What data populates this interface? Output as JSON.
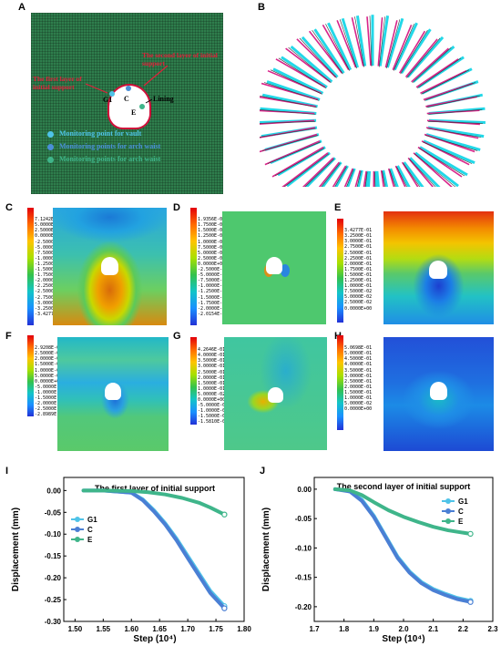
{
  "panel_labels": {
    "A": "A",
    "B": "B",
    "C": "C",
    "D": "D",
    "E": "E",
    "F": "F",
    "G": "G",
    "H": "H",
    "I": "I",
    "J": "J"
  },
  "panel_a": {
    "label_second_layer": "The second layer of initial support",
    "label_first_layer": "The first layer of initial support",
    "label_lining": "Lining",
    "points": [
      "G1",
      "C",
      "E"
    ],
    "legend": [
      {
        "text": "Monitoring point for vault",
        "color": "#4fc3e8"
      },
      {
        "text": "Monitoring points for arch waist",
        "color": "#4a8fd8"
      },
      {
        "text": "Monitoring points for arch waist",
        "color": "#3fb58a"
      }
    ]
  },
  "contours": {
    "C": [
      "7.1242E-02",
      "5.0000E-02",
      "2.5000E-02",
      "0.0000E+00",
      "-2.5000E-02",
      "-5.0000E-02",
      "-7.5000E-02",
      "-1.0000E-01",
      "-1.2500E-01",
      "-1.5000E-01",
      "-1.7500E-01",
      "-2.0000E-01",
      "-2.2500E-01",
      "-2.5000E-01",
      "-2.7500E-01",
      "-3.0000E-01",
      "-3.2500E-01",
      "-3.4277E-01"
    ],
    "D": [
      "1.9356E-01",
      "1.7500E-01",
      "1.5000E-01",
      "1.2500E-01",
      "1.0000E-01",
      "7.5000E-02",
      "5.0000E-02",
      "2.5000E-02",
      "0.0000E+00",
      "-2.5000E-02",
      "-5.0000E-02",
      "-7.5000E-02",
      "-1.0000E-01",
      "-1.2500E-01",
      "-1.5000E-01",
      "-1.7500E-01",
      "-2.0000E-01",
      "-2.0154E-01"
    ],
    "E": [
      "3.4277E-01",
      "3.2500E-01",
      "3.0000E-01",
      "2.7500E-01",
      "2.5000E-01",
      "2.2500E-01",
      "2.0000E-01",
      "1.7500E-01",
      "1.5000E-01",
      "1.2500E-01",
      "1.0000E-01",
      "7.5000E-02",
      "5.0000E-02",
      "2.5000E-02",
      "0.0000E+00"
    ],
    "F": [
      "2.9208E-01",
      "2.5000E-01",
      "2.0000E-01",
      "1.5000E-01",
      "1.0000E-01",
      "5.0000E-02",
      "0.0000E+00",
      "-5.0000E-02",
      "-1.0000E-01",
      "-1.5000E-01",
      "-2.0000E-01",
      "-2.5000E-01",
      "-2.8989E-01"
    ],
    "G": [
      "4.2646E-01",
      "4.0000E-01",
      "3.5000E-01",
      "3.0000E-01",
      "2.5000E-01",
      "2.0000E-01",
      "1.5000E-01",
      "1.0000E-01",
      "5.0000E-02",
      "0.0000E+00",
      "-5.0000E-02",
      "-1.0000E-01",
      "-1.5000E-01",
      "-1.5810E-01"
    ],
    "H": [
      "5.0698E-01",
      "5.0000E-01",
      "4.5000E-01",
      "4.0000E-01",
      "3.5000E-01",
      "3.0000E-01",
      "2.5000E-01",
      "2.0000E-01",
      "1.5000E-01",
      "1.0000E-01",
      "5.0000E-02",
      "0.0000E+00"
    ]
  },
  "chart_data": [
    {
      "type": "line",
      "title": "The first layer of initial support",
      "xlabel": "Step (10⁴)",
      "ylabel": "Displacement (mm)",
      "xlim": [
        1.48,
        1.8
      ],
      "ylim": [
        -0.3,
        0.03
      ],
      "xticks": [
        "1.50",
        "1.55",
        "1.60",
        "1.65",
        "1.70",
        "1.75",
        "1.80"
      ],
      "yticks": [
        "0.00",
        "-0.05",
        "-0.10",
        "-0.15",
        "-0.20",
        "-0.25",
        "-0.30"
      ],
      "xtick_values": [
        1.5,
        1.55,
        1.6,
        1.65,
        1.7,
        1.75,
        1.8
      ],
      "ytick_values": [
        0.0,
        -0.05,
        -0.1,
        -0.15,
        -0.2,
        -0.25,
        -0.3
      ],
      "legend_position": "left",
      "series": [
        {
          "name": "G1",
          "color": "#4fc3e8",
          "x": [
            1.515,
            1.55,
            1.6,
            1.62,
            1.64,
            1.66,
            1.68,
            1.7,
            1.72,
            1.74,
            1.765
          ],
          "y": [
            0.0,
            0.0,
            -0.005,
            -0.02,
            -0.045,
            -0.075,
            -0.11,
            -0.15,
            -0.19,
            -0.23,
            -0.265
          ]
        },
        {
          "name": "C",
          "color": "#4a7fd4",
          "x": [
            1.515,
            1.55,
            1.6,
            1.62,
            1.64,
            1.66,
            1.68,
            1.7,
            1.72,
            1.74,
            1.765
          ],
          "y": [
            0.0,
            0.0,
            -0.005,
            -0.022,
            -0.048,
            -0.078,
            -0.114,
            -0.155,
            -0.195,
            -0.235,
            -0.27
          ]
        },
        {
          "name": "E",
          "color": "#3fb58a",
          "x": [
            1.515,
            1.55,
            1.6,
            1.63,
            1.66,
            1.69,
            1.72,
            1.74,
            1.765
          ],
          "y": [
            0.0,
            0.0,
            -0.001,
            -0.004,
            -0.009,
            -0.017,
            -0.028,
            -0.039,
            -0.055
          ]
        }
      ]
    },
    {
      "type": "line",
      "title": "The second layer of initial support",
      "xlabel": "Step (10⁴)",
      "ylabel": "Displacement (mm)",
      "xlim": [
        1.7,
        2.3
      ],
      "ylim": [
        -0.225,
        0.02
      ],
      "xticks": [
        "1.7",
        "1.8",
        "1.9",
        "2.0",
        "2.1",
        "2.2",
        "2.3"
      ],
      "yticks": [
        "0.00",
        "-0.05",
        "-0.10",
        "-0.15",
        "-0.20"
      ],
      "xtick_values": [
        1.7,
        1.8,
        1.9,
        2.0,
        2.1,
        2.2,
        2.3
      ],
      "ytick_values": [
        0.0,
        -0.05,
        -0.1,
        -0.15,
        -0.2
      ],
      "legend_position": "top-right",
      "series": [
        {
          "name": "G1",
          "color": "#4fc3e8",
          "x": [
            1.77,
            1.82,
            1.86,
            1.9,
            1.94,
            1.98,
            2.02,
            2.06,
            2.1,
            2.14,
            2.18,
            2.225
          ],
          "y": [
            0.0,
            -0.003,
            -0.018,
            -0.045,
            -0.08,
            -0.115,
            -0.14,
            -0.158,
            -0.17,
            -0.178,
            -0.185,
            -0.19
          ]
        },
        {
          "name": "C",
          "color": "#4a7fd4",
          "x": [
            1.77,
            1.82,
            1.86,
            1.9,
            1.94,
            1.98,
            2.02,
            2.06,
            2.1,
            2.14,
            2.18,
            2.225
          ],
          "y": [
            0.0,
            -0.004,
            -0.02,
            -0.047,
            -0.082,
            -0.117,
            -0.142,
            -0.16,
            -0.172,
            -0.18,
            -0.187,
            -0.192
          ]
        },
        {
          "name": "E",
          "color": "#3fb58a",
          "x": [
            1.77,
            1.82,
            1.86,
            1.9,
            1.95,
            2.0,
            2.05,
            2.1,
            2.15,
            2.225
          ],
          "y": [
            0.0,
            -0.002,
            -0.01,
            -0.022,
            -0.036,
            -0.047,
            -0.056,
            -0.064,
            -0.07,
            -0.076
          ]
        }
      ]
    }
  ]
}
